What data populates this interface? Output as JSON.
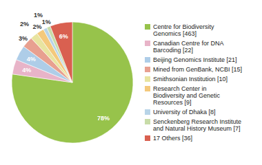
{
  "chart_data": {
    "type": "pie",
    "categories": [
      "Centre for Biodiversity\nGenomics [463]",
      "Canadian Centre for DNA\nBarcoding [22]",
      "Beijing Genomics Institute [21]",
      "Mined from GenBank, NCBI [15]",
      "Smithsonian Institution [10]",
      "Research Center in\nBiodiversity and Genetic\nResources [9]",
      "University of Dhaka [8]",
      "Senckenberg Research Institute\nand Natural History Museum [7]",
      "17 Others [36]"
    ],
    "values": [
      78,
      4,
      4,
      3,
      2,
      2,
      1,
      1,
      6
    ],
    "value_labels": [
      "78%",
      "4%",
      "4%",
      "3%",
      "2%",
      "2%",
      "1%",
      "1%",
      "6%"
    ],
    "colors": [
      "#97c34b",
      "#e8b4c8",
      "#aecde8",
      "#e8a090",
      "#e8e4a0",
      "#f4c97c",
      "#b8d4e8",
      "#c8dca8",
      "#d96050"
    ],
    "data_labels": true,
    "legend": "right"
  }
}
